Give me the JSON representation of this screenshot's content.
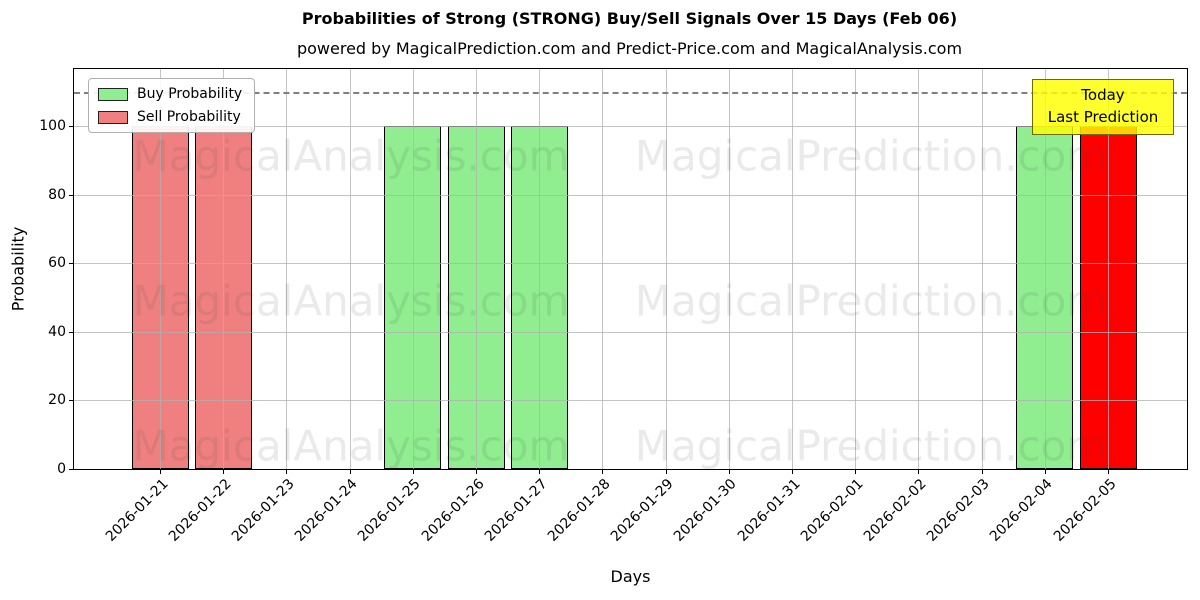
{
  "title": "Probabilities of Strong (STRONG) Buy/Sell Signals Over 15 Days (Feb 06)",
  "subtitle": "powered by MagicalPrediction.com and Predict-Price.com and MagicalAnalysis.com",
  "legend": {
    "items": [
      {
        "label": "Buy Probability",
        "color": "#90EE90"
      },
      {
        "label": "Sell Probability",
        "color": "#F08080"
      }
    ]
  },
  "annotation": {
    "line1": "Today",
    "line2": "Last Prediction",
    "bg_color": "#FFFF00"
  },
  "watermarks": {
    "left_text": "MagicalAnalysis.com",
    "right_text": "MagicalPrediction.com"
  },
  "colors": {
    "buy": "#90EE90",
    "sell": "#F08080",
    "today_bar": "#FF0000",
    "grid": "#b0b0b0",
    "dashed_line": "#7f7f7f"
  },
  "chart_data": {
    "type": "bar",
    "title": "Probabilities of Strong (STRONG) Buy/Sell Signals Over 15 Days (Feb 06)",
    "xlabel": "Days",
    "ylabel": "Probability",
    "categories": [
      "2026-01-21",
      "2026-01-22",
      "2026-01-23",
      "2026-01-24",
      "2026-01-25",
      "2026-01-26",
      "2026-01-27",
      "2026-01-28",
      "2026-01-29",
      "2026-01-30",
      "2026-01-31",
      "2026-02-01",
      "2026-02-02",
      "2026-02-03",
      "2026-02-04",
      "2026-02-05"
    ],
    "series": [
      {
        "name": "Buy Probability",
        "color": "#90EE90",
        "values": [
          null,
          null,
          null,
          null,
          100,
          100,
          100,
          null,
          null,
          null,
          null,
          null,
          null,
          null,
          100,
          null
        ]
      },
      {
        "name": "Sell Probability",
        "color": "#F08080",
        "values": [
          100,
          100,
          null,
          null,
          null,
          null,
          null,
          null,
          null,
          null,
          null,
          null,
          null,
          null,
          null,
          null
        ]
      },
      {
        "name": "Today / Last Prediction",
        "color": "#FF0000",
        "values": [
          null,
          null,
          null,
          null,
          null,
          null,
          null,
          null,
          null,
          null,
          null,
          null,
          null,
          null,
          null,
          100
        ]
      }
    ],
    "layout": {
      "yticks": [
        0,
        20,
        40,
        60,
        80,
        100
      ],
      "ylim": [
        0,
        116.6
      ],
      "hline": {
        "y": 110,
        "style": "dashed",
        "color": "#7f7f7f"
      },
      "grid": true,
      "legend_position": "upper left",
      "xtick_rotation": 45
    }
  }
}
